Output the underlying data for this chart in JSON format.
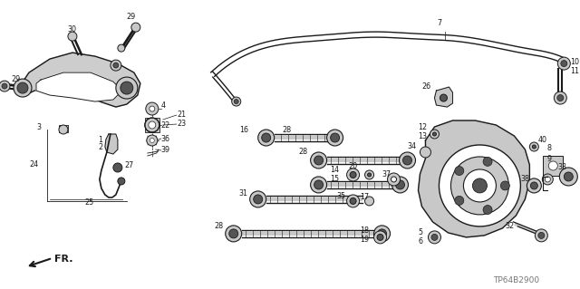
{
  "bg_color": "#ffffff",
  "fig_width": 6.4,
  "fig_height": 3.19,
  "watermark": "TP64B2900",
  "line_color": "#1a1a1a",
  "gray_fill": "#c8c8c8",
  "dark_fill": "#555555",
  "font_size": 5.8
}
